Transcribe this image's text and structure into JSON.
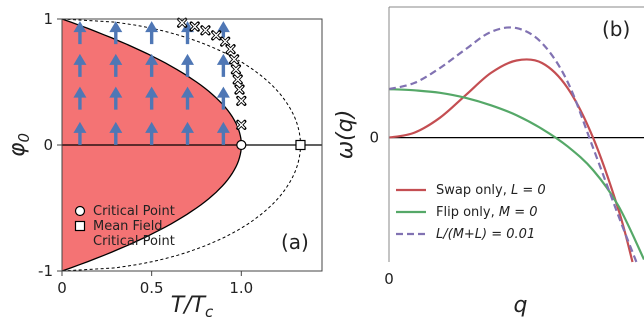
{
  "chart_data": [
    {
      "type": "scatter",
      "panel_label": "(a)",
      "xlabel": "T/T_c",
      "ylabel": "φ_0",
      "xlim": [
        0,
        1.45
      ],
      "ylim": [
        -1,
        1
      ],
      "xticks": [
        {
          "value": 0,
          "label": "0"
        },
        {
          "value": 0.5,
          "label": "0.5"
        },
        {
          "value": 1.0,
          "label": "1.0"
        }
      ],
      "yticks": [
        {
          "value": -1,
          "label": "-1"
        },
        {
          "value": 0,
          "label": "0"
        },
        {
          "value": 1,
          "label": "1"
        }
      ],
      "colors": {
        "region": "#f47374",
        "arrow": "#4f77b5",
        "line": "#000000"
      },
      "order_parameter_region": {
        "T_c": 1.0,
        "shape_exponent": 0.5
      },
      "mean_field_boundary": {
        "T_mf": 1.33,
        "style": "dashed"
      },
      "arrows_x": [
        0.1,
        0.3,
        0.5,
        0.7,
        0.9
      ],
      "crosses": [
        {
          "x": 0.67,
          "y": 0.97
        },
        {
          "x": 0.74,
          "y": 0.94
        },
        {
          "x": 0.8,
          "y": 0.91
        },
        {
          "x": 0.86,
          "y": 0.87
        },
        {
          "x": 0.91,
          "y": 0.82
        },
        {
          "x": 0.94,
          "y": 0.76
        },
        {
          "x": 0.96,
          "y": 0.68
        },
        {
          "x": 0.97,
          "y": 0.6
        },
        {
          "x": 0.98,
          "y": 0.52
        },
        {
          "x": 0.99,
          "y": 0.44
        },
        {
          "x": 1.0,
          "y": 0.35
        },
        {
          "x": 1.0,
          "y": 0.16
        }
      ],
      "critical_point": {
        "x": 1.0,
        "y": 0
      },
      "mean_field_critical_point": {
        "x": 1.33,
        "y": 0
      },
      "legend": [
        {
          "marker": "circle",
          "label": "Critical Point"
        },
        {
          "marker": "square",
          "label": "Mean Field"
        },
        {
          "marker": "none",
          "label": "Critical Point"
        }
      ]
    },
    {
      "type": "line",
      "panel_label": "(b)",
      "xlabel": "q",
      "ylabel": "ω(q)",
      "xtick_label": "0",
      "ytick_label": "0",
      "xlim": [
        0,
        1.0
      ],
      "ylim": [
        -1.0,
        1.05
      ],
      "series": [
        {
          "name": "Swap only, L = 0",
          "legend_label": "Swap only, $L = 0$",
          "color": "#c44e52",
          "style": "solid",
          "x": [
            0,
            0.1,
            0.2,
            0.3,
            0.4,
            0.5,
            0.6,
            0.7,
            0.8,
            0.9,
            0.955
          ],
          "y": [
            0,
            0.04,
            0.16,
            0.34,
            0.52,
            0.62,
            0.6,
            0.4,
            0.0,
            -0.58,
            -1.0
          ]
        },
        {
          "name": "Flip only, M = 0",
          "legend_label": "Flip only, $M = 0$",
          "color": "#55a868",
          "style": "solid",
          "x": [
            0,
            0.1,
            0.2,
            0.3,
            0.4,
            0.5,
            0.6,
            0.7,
            0.8,
            0.9,
            1.0
          ],
          "y": [
            0.39,
            0.38,
            0.36,
            0.32,
            0.26,
            0.18,
            0.07,
            -0.07,
            -0.26,
            -0.55,
            -0.98
          ]
        },
        {
          "name": "L/(M + L) = 0.01",
          "legend_label": "$L/(M+L) = 0.01$",
          "color": "#8172b2",
          "style": "dashed",
          "x": [
            0,
            0.1,
            0.2,
            0.3,
            0.4,
            0.5,
            0.6,
            0.7,
            0.8,
            0.9,
            0.97
          ],
          "y": [
            0.39,
            0.44,
            0.56,
            0.71,
            0.85,
            0.88,
            0.76,
            0.45,
            -0.08,
            -0.63,
            -1.0
          ]
        }
      ]
    }
  ]
}
